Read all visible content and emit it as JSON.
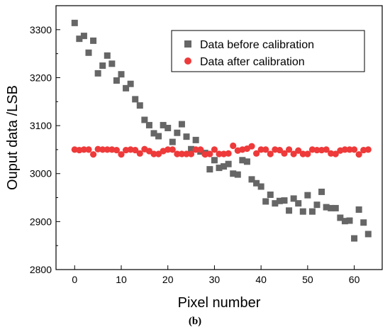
{
  "chart_data": {
    "type": "scatter",
    "title": "",
    "caption": "(b)",
    "xlabel": "Pixel number",
    "ylabel": "Ouput data /LSB",
    "xlim": [
      -4,
      66
    ],
    "ylim": [
      2800,
      3350
    ],
    "xticks": [
      0,
      10,
      20,
      30,
      40,
      50,
      60
    ],
    "yticks": [
      2800,
      2900,
      3000,
      3100,
      3200,
      3300
    ],
    "grid": false,
    "legend_position": "top-right",
    "series": [
      {
        "name": "Data before calibration",
        "marker": "square",
        "color": "#666666",
        "x": [
          0,
          1,
          2,
          3,
          4,
          5,
          6,
          7,
          8,
          9,
          10,
          11,
          12,
          13,
          14,
          15,
          16,
          17,
          18,
          19,
          20,
          21,
          22,
          23,
          24,
          25,
          26,
          27,
          28,
          29,
          30,
          31,
          32,
          33,
          34,
          35,
          36,
          37,
          38,
          39,
          40,
          41,
          42,
          43,
          44,
          45,
          46,
          47,
          48,
          49,
          50,
          51,
          52,
          53,
          54,
          55,
          56,
          57,
          58,
          59,
          60,
          61,
          62,
          63
        ],
        "y": [
          3314,
          3281,
          3287,
          3252,
          3277,
          3209,
          3225,
          3246,
          3229,
          3194,
          3207,
          3178,
          3187,
          3155,
          3142,
          3112,
          3101,
          3084,
          3078,
          3101,
          3095,
          3066,
          3085,
          3103,
          3077,
          3051,
          3070,
          3046,
          3043,
          3009,
          3028,
          3012,
          3015,
          3020,
          3000,
          2998,
          3028,
          3025,
          2988,
          2980,
          2973,
          2942,
          2956,
          2938,
          2943,
          2944,
          2923,
          2948,
          2938,
          2921,
          2955,
          2921,
          2935,
          2962,
          2930,
          2928,
          2928,
          2908,
          2901,
          2902,
          2865,
          2925,
          2898,
          2874
        ]
      },
      {
        "name": "Data after calibration",
        "marker": "circle",
        "color": "#ee3a3a",
        "x": [
          0,
          1,
          2,
          3,
          4,
          5,
          6,
          7,
          8,
          9,
          10,
          11,
          12,
          13,
          14,
          15,
          16,
          17,
          18,
          19,
          20,
          21,
          22,
          23,
          24,
          25,
          26,
          27,
          28,
          29,
          30,
          31,
          32,
          33,
          34,
          35,
          36,
          37,
          38,
          39,
          40,
          41,
          42,
          43,
          44,
          45,
          46,
          47,
          48,
          49,
          50,
          51,
          52,
          53,
          54,
          55,
          56,
          57,
          58,
          59,
          60,
          61,
          62,
          63
        ],
        "y": [
          3050,
          3049,
          3050,
          3050,
          3040,
          3051,
          3050,
          3050,
          3050,
          3049,
          3040,
          3049,
          3050,
          3049,
          3042,
          3051,
          3047,
          3041,
          3041,
          3047,
          3050,
          3050,
          3041,
          3041,
          3041,
          3041,
          3050,
          3050,
          3040,
          3041,
          3050,
          3041,
          3041,
          3042,
          3058,
          3048,
          3050,
          3052,
          3057,
          3042,
          3050,
          3050,
          3041,
          3050,
          3049,
          3042,
          3050,
          3041,
          3048,
          3041,
          3041,
          3050,
          3049,
          3049,
          3050,
          3042,
          3041,
          3048,
          3050,
          3050,
          3050,
          3040,
          3049,
          3050
        ]
      }
    ]
  }
}
